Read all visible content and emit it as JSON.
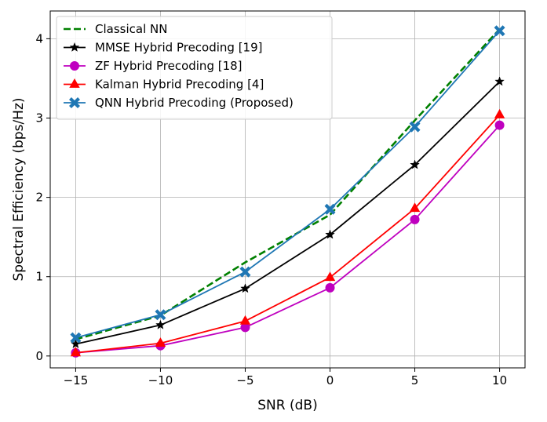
{
  "chart_data": {
    "type": "line",
    "title": "",
    "xlabel": "SNR (dB)",
    "ylabel": "Spectral Efficiency (bps/Hz)",
    "x": [
      -15,
      -10,
      -5,
      0,
      5,
      10
    ],
    "xticks": [
      "−15",
      "−10",
      "−5",
      "0",
      "5",
      "10"
    ],
    "xtick_values": [
      -15,
      -10,
      -5,
      0,
      5,
      10
    ],
    "yticks": [
      "0",
      "1",
      "2",
      "3",
      "4"
    ],
    "ytick_values": [
      0,
      1,
      2,
      3,
      4
    ],
    "xlim": [
      -16.5,
      11.5
    ],
    "ylim": [
      -0.15,
      4.35
    ],
    "grid": true,
    "legend_position": "top-left",
    "series": [
      {
        "name": "Classical NN",
        "values": [
          0.21,
          0.51,
          1.18,
          1.78,
          2.97,
          4.12
        ],
        "color": "#008000",
        "dash": "dashed",
        "marker": "none"
      },
      {
        "name": "MMSE Hybrid Precoding [19]",
        "values": [
          0.15,
          0.39,
          0.85,
          1.53,
          2.41,
          3.46
        ],
        "color": "#000000",
        "dash": "solid",
        "marker": "star"
      },
      {
        "name": "ZF Hybrid Precoding [18]",
        "values": [
          0.04,
          0.13,
          0.36,
          0.86,
          1.72,
          2.91
        ],
        "color": "#bf00bf",
        "dash": "solid",
        "marker": "circle"
      },
      {
        "name": "Kalman Hybrid Precoding [4]",
        "values": [
          0.04,
          0.16,
          0.44,
          0.99,
          1.86,
          3.04
        ],
        "color": "#ff0000",
        "dash": "solid",
        "marker": "triangle"
      },
      {
        "name": "QNN Hybrid Precoding (Proposed)",
        "values": [
          0.23,
          0.52,
          1.06,
          1.85,
          2.89,
          4.1
        ],
        "color": "#1f77b4",
        "dash": "solid",
        "marker": "x"
      }
    ]
  }
}
